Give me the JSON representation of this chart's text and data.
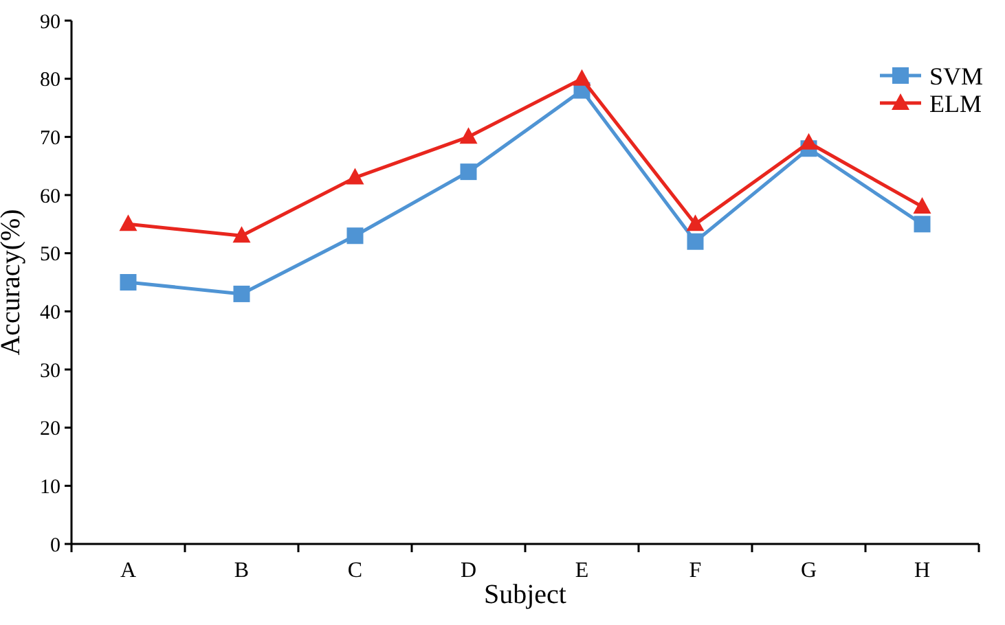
{
  "chart_data": {
    "type": "line",
    "xlabel": "Subject",
    "ylabel": "Accuracy(%)",
    "categories": [
      "A",
      "B",
      "C",
      "D",
      "E",
      "F",
      "G",
      "H"
    ],
    "series": [
      {
        "name": "SVM",
        "color": "#4f94d4",
        "marker": "square",
        "values": [
          45,
          43,
          53,
          64,
          78,
          52,
          68,
          55
        ]
      },
      {
        "name": "ELM",
        "color": "#e8261e",
        "marker": "triangle",
        "values": [
          55,
          53,
          63,
          70,
          80,
          55,
          69,
          58
        ]
      }
    ],
    "ylim": [
      0,
      90
    ],
    "yticks": [
      0,
      10,
      20,
      30,
      40,
      50,
      60,
      70,
      80,
      90
    ],
    "grid": false,
    "legend": "top right"
  }
}
